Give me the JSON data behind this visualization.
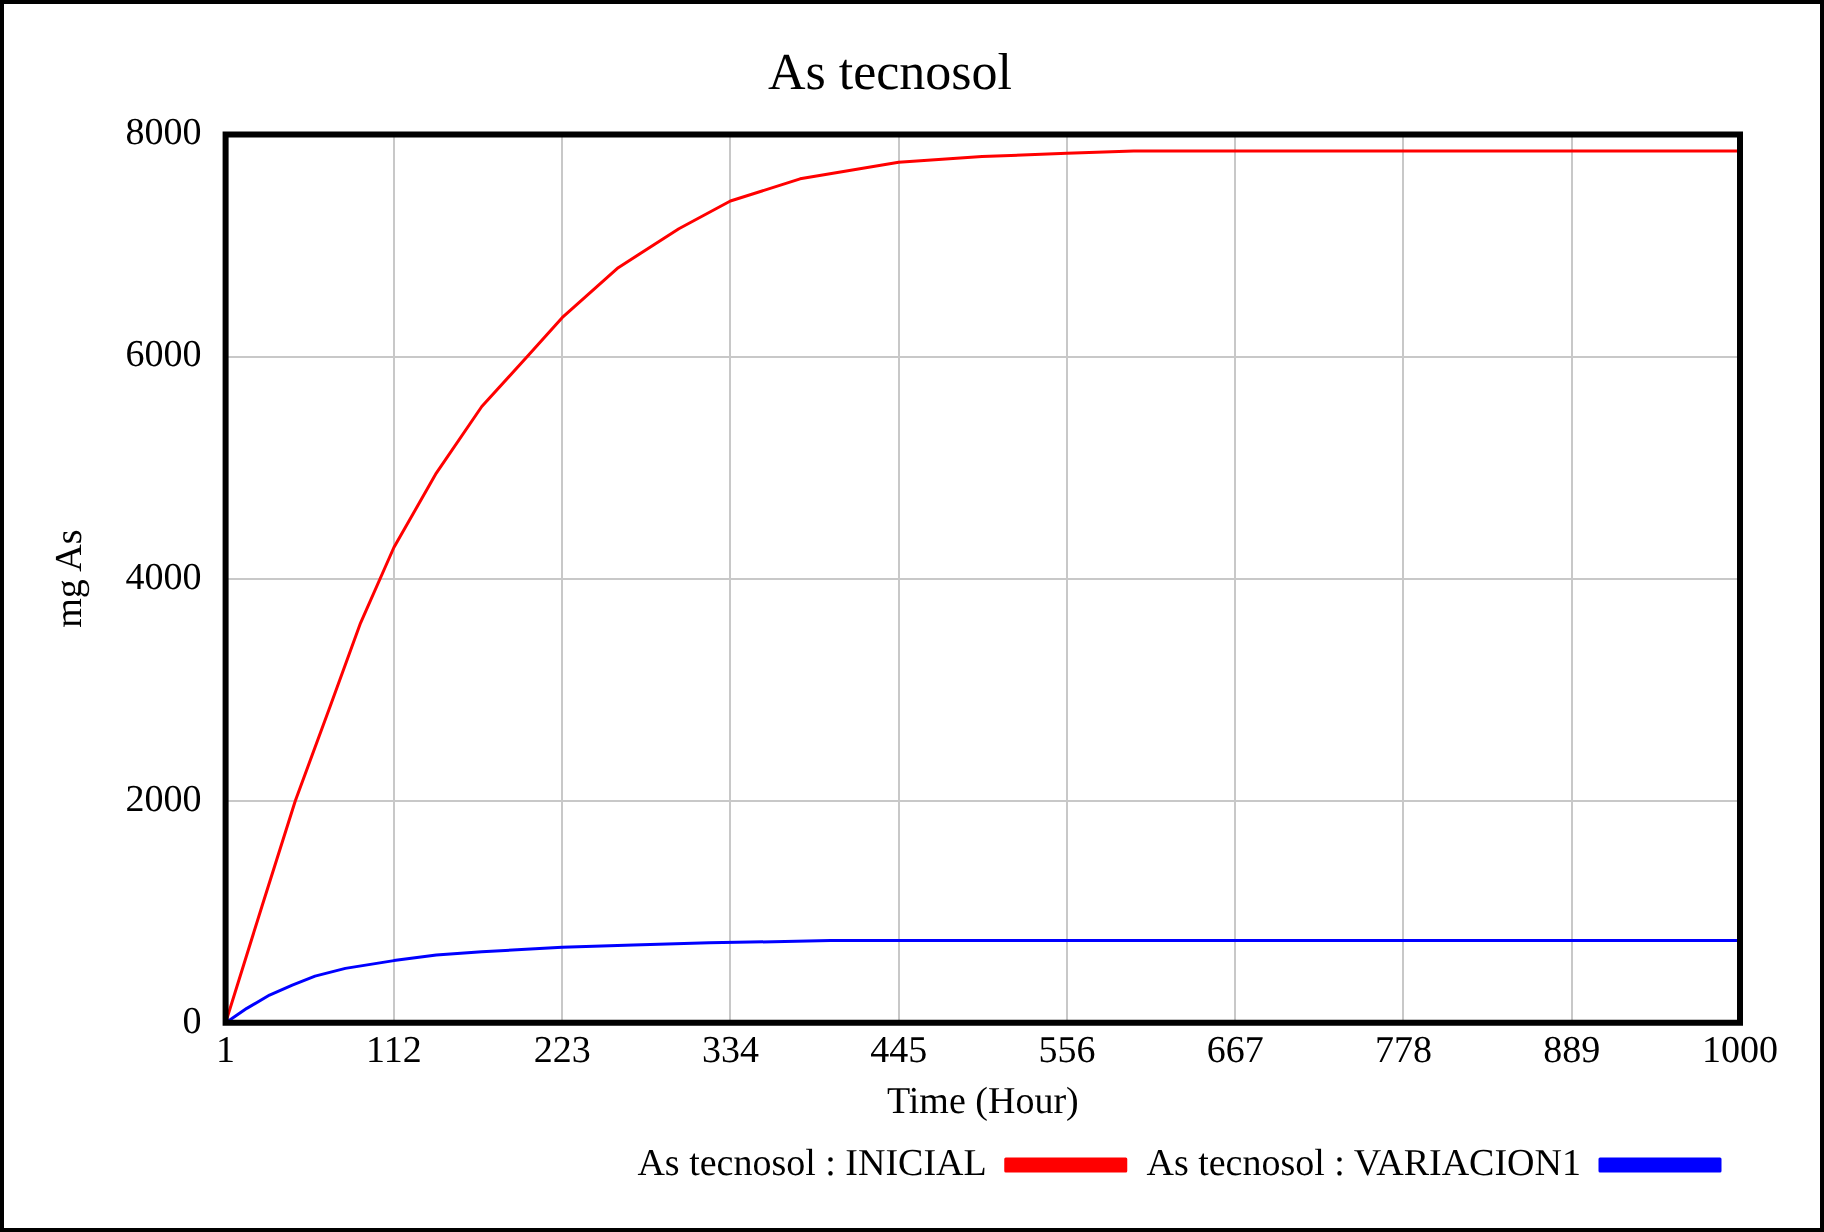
{
  "chart_data": {
    "type": "line",
    "title": "As tecnosol",
    "xlabel": "Time (Hour)",
    "ylabel": "mg As",
    "xlim": [
      1,
      1000
    ],
    "xticks": [
      1,
      112,
      223,
      334,
      445,
      556,
      667,
      778,
      889,
      1000
    ],
    "ylim": [
      0,
      8000
    ],
    "yticks": [
      0,
      2000,
      4000,
      6000,
      8000
    ],
    "grid": true,
    "legend": "bottom",
    "marker": "none",
    "line_style": "solid",
    "series": [
      {
        "name": "As tecnosol : VARIACION1",
        "color": "#0000ff",
        "x": [
          1,
          15,
          30,
          45,
          60,
          80,
          112,
          140,
          170,
          223,
          270,
          320,
          400,
          500,
          1000
        ],
        "values": [
          0,
          130,
          250,
          340,
          420,
          490,
          560,
          610,
          640,
          680,
          700,
          720,
          740,
          740,
          740
        ]
      },
      {
        "name": "As tecnosol : INICIAL",
        "color": "#ff0000",
        "x": [
          1,
          25,
          47,
          70,
          90,
          112,
          140,
          170,
          200,
          223,
          260,
          300,
          334,
          380,
          445,
          500,
          556,
          600,
          1000
        ],
        "values": [
          0,
          1050,
          2000,
          2850,
          3600,
          4280,
          4950,
          5550,
          6000,
          6350,
          6800,
          7150,
          7400,
          7600,
          7750,
          7800,
          7830,
          7850,
          7850
        ]
      }
    ]
  }
}
